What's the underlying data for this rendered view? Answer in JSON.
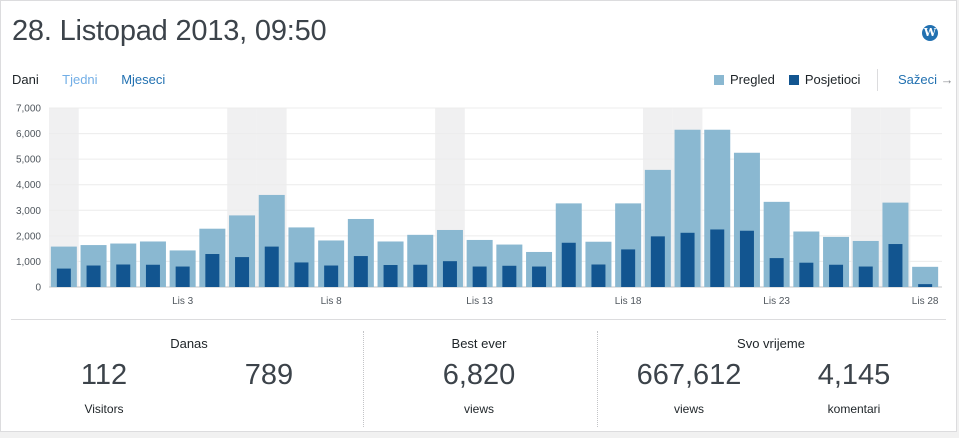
{
  "header": {
    "title": "28. Listopad 2013, 09:50",
    "wp_icon": "wordpress-icon"
  },
  "tabs": [
    {
      "label": "Dani",
      "active": true
    },
    {
      "label": "Tjedni",
      "active": false
    },
    {
      "label": "Mjeseci",
      "active": false
    }
  ],
  "legend": {
    "items": [
      {
        "label": "Pregled",
        "color": "#8ab8d1"
      },
      {
        "label": "Posjetioci",
        "color": "#125590"
      }
    ],
    "link_label": "Sažeci",
    "link_icon": "arrow-right-icon",
    "link_arrow": "→"
  },
  "chart_data": {
    "type": "bar",
    "y_ticks": [
      "7,000",
      "6,000",
      "5,000",
      "4,000",
      "3,000",
      "2,000",
      "1,000",
      "0"
    ],
    "ylim": [
      0,
      7000
    ],
    "x_tick_labels": [
      {
        "label": "Lis 3",
        "index": 4
      },
      {
        "label": "Lis 8",
        "index": 9
      },
      {
        "label": "Lis 13",
        "index": 14
      },
      {
        "label": "Lis 18",
        "index": 19
      },
      {
        "label": "Lis 23",
        "index": 24
      },
      {
        "label": "Lis 28",
        "index": 29
      }
    ],
    "weekend_indices": [
      0,
      6,
      7,
      13,
      20,
      21,
      27,
      28
    ],
    "series": [
      {
        "name": "Pregled",
        "color": "#8ab8d1",
        "values": [
          1580,
          1640,
          1700,
          1780,
          1430,
          2280,
          2800,
          3600,
          2330,
          1820,
          2660,
          1780,
          2040,
          2230,
          1840,
          1660,
          1370,
          3270,
          1770,
          3270,
          4580,
          6150,
          6150,
          5250,
          3330,
          2170,
          1960,
          1800,
          3300,
          789
        ]
      },
      {
        "name": "Posjetioci",
        "color": "#125590",
        "values": [
          720,
          840,
          880,
          870,
          800,
          1290,
          1170,
          1580,
          960,
          840,
          1210,
          860,
          870,
          1010,
          800,
          830,
          800,
          1730,
          880,
          1470,
          1980,
          2120,
          2250,
          2200,
          1130,
          950,
          870,
          800,
          1680,
          112
        ]
      }
    ]
  },
  "stats": {
    "danas": {
      "header": "Danas",
      "visitors_value": "112",
      "visitors_label": "Visitors",
      "views_value": "789"
    },
    "best_ever": {
      "header": "Best ever",
      "value": "6,820",
      "label": "views"
    },
    "svo_vrijeme": {
      "header": "Svo vrijeme",
      "views_value": "667,612",
      "views_label": "views",
      "comments_value": "4,145",
      "comments_label": "komentari"
    }
  }
}
